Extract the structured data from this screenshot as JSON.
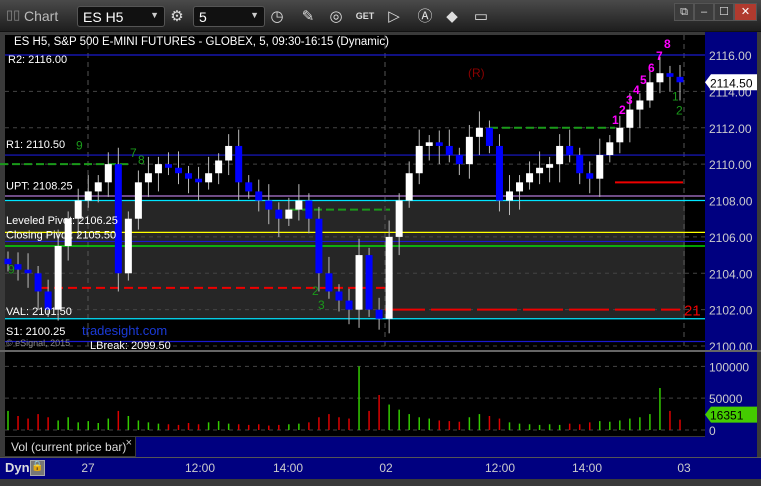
{
  "window": {
    "title": "Chart",
    "symbol": "ES H5",
    "interval": "5",
    "controls": [
      "restore-menu",
      "minimize",
      "maximize",
      "close"
    ]
  },
  "toolbar": {
    "icons": [
      "gear-icon",
      "clock-icon",
      "pencil-icon",
      "study-icon",
      "get-icon",
      "play-icon",
      "alert-icon",
      "diamond-icon",
      "chat-icon"
    ],
    "get_label": "GET"
  },
  "chart": {
    "info": "ES H5, S&P 500 E-MINI FUTURES - GLOBEX, 5, 09:30-16:15 (Dynamic)",
    "levels": [
      {
        "label": "R2: 2116.00",
        "price": 2116.0,
        "color": "#1a1ad0"
      },
      {
        "label": "R1: 2110.50",
        "price": 2110.5,
        "color": "#1a1ad0"
      },
      {
        "label": "UPT: 2108.25",
        "price": 2108.25,
        "color": "#b07ad8"
      },
      {
        "label": "",
        "price": 2108.0,
        "color": "#00e5ff"
      },
      {
        "label": "Leveled Pivot: 2106.25",
        "price": 2106.25,
        "color": "#ffff00"
      },
      {
        "label": "",
        "price": 2105.75,
        "color": "#1a1ad0"
      },
      {
        "label": "Closing Pivot: 2105.50",
        "price": 2105.5,
        "color": "#00ff00"
      },
      {
        "label": "VAL: 2101.50",
        "price": 2101.5,
        "color": "#00e5ff"
      },
      {
        "label": "S1: 2100.25",
        "price": 2100.25,
        "color": "#1a1ad0"
      },
      {
        "label": "LBreak: 2099.50",
        "price": 2099.5,
        "color": "#888888"
      }
    ],
    "watermark": "tradesight.com",
    "copyright": "© eSignal, 2015",
    "annotation_R": "(R)",
    "red_label": "21",
    "last_price": "2114.50",
    "last_volume": "16351",
    "magenta_counts": [
      "1",
      "2",
      "3",
      "4",
      "5",
      "6",
      "7",
      "8"
    ],
    "green_counts": [
      "9",
      "7",
      "8",
      "9",
      "2",
      "3",
      "1",
      "2"
    ],
    "colors": {
      "up": "#ffffff",
      "down": "#0000ff",
      "vol_up": "#33cc00",
      "vol_down": "#dd0000",
      "axis_bg": "#000080"
    }
  },
  "chart_data": {
    "type": "candlestick",
    "price_axis": {
      "ticks": [
        "2116.00",
        "2114.00",
        "2112.00",
        "2110.00",
        "2108.00",
        "2106.00",
        "2104.00",
        "2102.00",
        "2100.00"
      ],
      "range": [
        2100,
        2116
      ]
    },
    "volume_axis": {
      "ticks": [
        "100000",
        "50000",
        "0"
      ],
      "range": [
        0,
        110000
      ]
    },
    "time_ticks": [
      "27",
      "12:00",
      "14:00",
      "02",
      "12:00",
      "14:00",
      "03"
    ],
    "closes": [
      2104.5,
      2104.2,
      2104,
      2103,
      2102,
      2105.5,
      2107,
      2108,
      2108.5,
      2109,
      2110,
      2104,
      2107,
      2109,
      2109.5,
      2110,
      2109.8,
      2109.5,
      2109.2,
      2109,
      2109.5,
      2110.2,
      2111,
      2109,
      2108.5,
      2108,
      2107.5,
      2107,
      2107.5,
      2108,
      2107,
      2104,
      2103,
      2102.5,
      2102,
      2105,
      2102,
      2101.5,
      2106,
      2108,
      2109.5,
      2111,
      2111.2,
      2111,
      2110.5,
      2110,
      2111.5,
      2112,
      2111,
      2108,
      2108.5,
      2109,
      2109.5,
      2109.8,
      2110,
      2111,
      2110.5,
      2109.5,
      2109.2,
      2110.5,
      2111.2,
      2112,
      2113,
      2113.5,
      2114.5,
      2115,
      2114.8,
      2114.5
    ],
    "volumes": [
      30000,
      22000,
      18000,
      25000,
      20000,
      15000,
      20000,
      12000,
      14000,
      11000,
      18000,
      30000,
      22000,
      15000,
      12000,
      10000,
      9000,
      8000,
      11000,
      9000,
      12000,
      14000,
      10000,
      9000,
      8000,
      9000,
      7000,
      8000,
      9000,
      10000,
      12000,
      20000,
      25000,
      20000,
      18000,
      100000,
      30000,
      55000,
      40000,
      32000,
      25000,
      20000,
      18000,
      15000,
      14000,
      13000,
      20000,
      25000,
      22000,
      18000,
      12000,
      10000,
      9000,
      8000,
      9000,
      8000,
      10000,
      9000,
      12000,
      14000,
      13000,
      15000,
      18000,
      20000,
      25000,
      66000,
      30000,
      16351
    ]
  },
  "volume_tab": {
    "label": "Vol (current price bar)",
    "close": "×"
  },
  "time_axis": {
    "mode": "Dyn",
    "ticks": [
      {
        "label": "27"
      },
      {
        "label": "12:00"
      },
      {
        "label": "14:00"
      },
      {
        "label": "02"
      },
      {
        "label": "12:00"
      },
      {
        "label": "14:00"
      },
      {
        "label": "03"
      }
    ]
  }
}
